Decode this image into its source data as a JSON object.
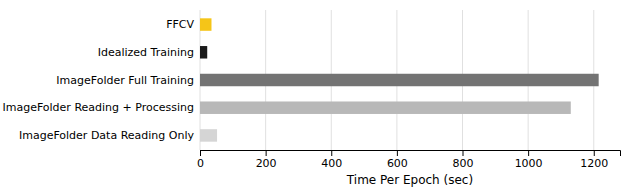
{
  "chart_data": {
    "type": "bar",
    "orientation": "horizontal",
    "categories": [
      "FFCV",
      "Idealized Training",
      "ImageFolder Full Training",
      "ImageFolder Reading + Processing",
      "ImageFolder Data Reading Only"
    ],
    "values": [
      35,
      22,
      1215,
      1130,
      52
    ],
    "colors": [
      "#F5C518",
      "#1a1a1a",
      "#737373",
      "#b8b8b8",
      "#d5d5d5"
    ],
    "xlabel": "Time Per Epoch (sec)",
    "xlim": [
      0,
      1280
    ],
    "xticks": [
      0,
      200,
      400,
      600,
      800,
      1000,
      1200
    ],
    "grid": true
  }
}
